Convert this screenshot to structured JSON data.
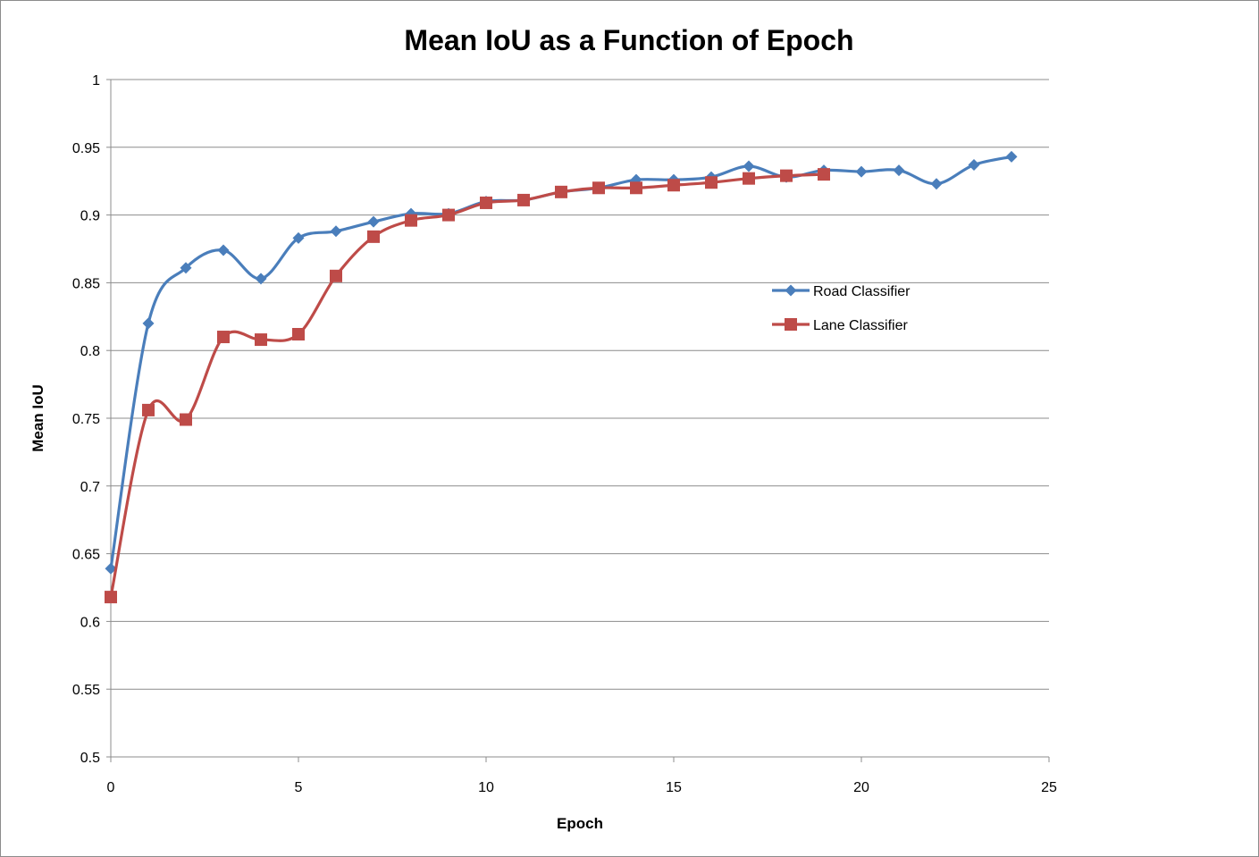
{
  "chart_data": {
    "type": "line",
    "title": "Mean IoU as a Function of Epoch",
    "xlabel": "Epoch",
    "ylabel": "Mean IoU",
    "xlim": [
      0,
      25
    ],
    "ylim": [
      0.5,
      1
    ],
    "x_ticks": [
      0,
      5,
      10,
      15,
      20,
      25
    ],
    "y_ticks": [
      0.5,
      0.55,
      0.6,
      0.65,
      0.7,
      0.75,
      0.8,
      0.85,
      0.9,
      0.95,
      1
    ],
    "x_tick_labels": [
      "0",
      "5",
      "10",
      "15",
      "20",
      "25"
    ],
    "y_tick_labels": [
      "0.5",
      "0.55",
      "0.6",
      "0.65",
      "0.7",
      "0.75",
      "0.8",
      "0.85",
      "0.9",
      "0.95",
      "1"
    ],
    "grid": "horizontal",
    "legend_position": "right",
    "smooth": true,
    "series": [
      {
        "name": "Road Classifier",
        "color": "#4a7ebb",
        "marker": "diamond",
        "x": [
          0,
          1,
          2,
          3,
          4,
          5,
          6,
          7,
          8,
          9,
          10,
          11,
          12,
          13,
          14,
          15,
          16,
          17,
          18,
          19,
          20,
          21,
          22,
          23,
          24
        ],
        "y": [
          0.639,
          0.82,
          0.861,
          0.874,
          0.853,
          0.883,
          0.888,
          0.895,
          0.901,
          0.901,
          0.91,
          0.911,
          0.917,
          0.92,
          0.926,
          0.926,
          0.928,
          0.936,
          0.928,
          0.933,
          0.932,
          0.933,
          0.923,
          0.937,
          0.943
        ]
      },
      {
        "name": "Lane Classifier",
        "color": "#be4b48",
        "marker": "square",
        "x": [
          0,
          1,
          2,
          3,
          4,
          5,
          6,
          7,
          8,
          9,
          10,
          11,
          12,
          13,
          14,
          15,
          16,
          17,
          18,
          19
        ],
        "y": [
          0.618,
          0.756,
          0.749,
          0.81,
          0.808,
          0.812,
          0.855,
          0.884,
          0.896,
          0.9,
          0.909,
          0.911,
          0.917,
          0.92,
          0.92,
          0.922,
          0.924,
          0.927,
          0.929,
          0.93
        ]
      }
    ]
  }
}
